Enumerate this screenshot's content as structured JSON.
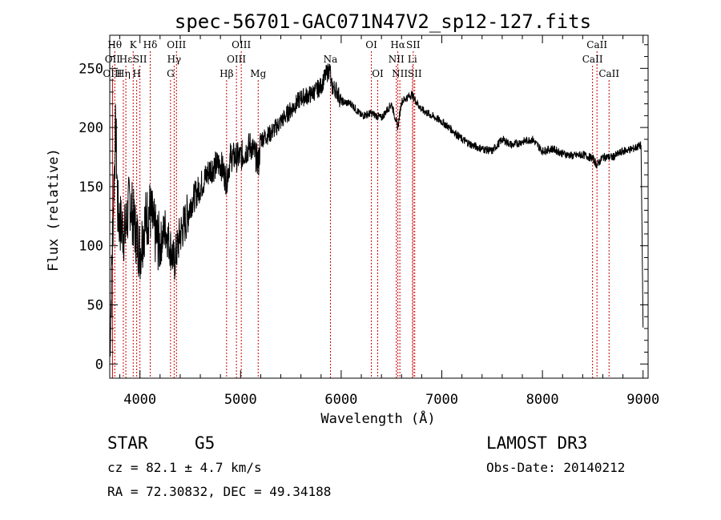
{
  "chart_data": {
    "type": "line",
    "title": "spec-56701-GAC071N47V2_sp12-127.fits",
    "xlabel": "Wavelength (Å)",
    "ylabel": "Flux (relative)",
    "xlim": [
      3700,
      9050
    ],
    "ylim": [
      -12,
      278
    ],
    "x_ticks": [
      4000,
      5000,
      6000,
      7000,
      8000,
      9000
    ],
    "y_ticks": [
      0,
      50,
      100,
      150,
      200,
      250
    ],
    "series": [
      {
        "name": "spectrum",
        "color": "#000000",
        "x": [
          3700,
          3720,
          3740,
          3760,
          3780,
          3800,
          3850,
          3900,
          3950,
          4000,
          4050,
          4100,
          4150,
          4200,
          4250,
          4300,
          4340,
          4400,
          4450,
          4500,
          4600,
          4700,
          4800,
          4860,
          4900,
          5000,
          5100,
          5180,
          5200,
          5300,
          5400,
          5500,
          5600,
          5700,
          5800,
          5850,
          5890,
          5900,
          5950,
          6000,
          6100,
          6200,
          6300,
          6400,
          6500,
          6563,
          6600,
          6700,
          6800,
          6900,
          7000,
          7100,
          7200,
          7300,
          7400,
          7500,
          7600,
          7700,
          7800,
          7900,
          8000,
          8100,
          8200,
          8300,
          8400,
          8500,
          8542,
          8600,
          8700,
          8800,
          8900,
          8980,
          9000
        ],
        "y": [
          10,
          80,
          150,
          200,
          130,
          120,
          110,
          140,
          115,
          95,
          120,
          130,
          110,
          100,
          115,
          100,
          85,
          110,
          120,
          135,
          150,
          165,
          170,
          155,
          175,
          175,
          185,
          170,
          190,
          195,
          205,
          215,
          225,
          228,
          235,
          245,
          250,
          235,
          232,
          222,
          220,
          210,
          212,
          208,
          220,
          200,
          222,
          228,
          215,
          210,
          205,
          198,
          190,
          185,
          182,
          180,
          190,
          185,
          188,
          190,
          180,
          182,
          178,
          176,
          177,
          174,
          168,
          175,
          175,
          180,
          182,
          185,
          30
        ]
      }
    ],
    "lines": [
      {
        "name": "OII",
        "x": 3727,
        "row": 1
      },
      {
        "name": "OIII",
        "x": 3727,
        "row": 2
      },
      {
        "name": "Hθ",
        "x": 3750,
        "row": 0
      },
      {
        "name": "Hη",
        "x": 3835,
        "row": 2
      },
      {
        "name": "Hε",
        "x": 3860,
        "row": 1
      },
      {
        "name": "K",
        "x": 3933,
        "row": 0
      },
      {
        "name": "H",
        "x": 3968,
        "row": 2
      },
      {
        "name": "SII",
        "x": 4000,
        "row": 1
      },
      {
        "name": "Hδ",
        "x": 4102,
        "row": 0
      },
      {
        "name": "G",
        "x": 4304,
        "row": 2
      },
      {
        "name": "Hγ",
        "x": 4340,
        "row": 1
      },
      {
        "name": "OIII",
        "x": 4363,
        "row": 0
      },
      {
        "name": "Hβ",
        "x": 4861,
        "row": 2
      },
      {
        "name": "OIII",
        "x": 4959,
        "row": 1
      },
      {
        "name": "OIII",
        "x": 5007,
        "row": 0
      },
      {
        "name": "Mg",
        "x": 5175,
        "row": 2
      },
      {
        "name": "Na",
        "x": 5893,
        "row": 1
      },
      {
        "name": "OI",
        "x": 6300,
        "row": 0
      },
      {
        "name": "OI",
        "x": 6363,
        "row": 2
      },
      {
        "name": "NII",
        "x": 6548,
        "row": 1
      },
      {
        "name": "Hα",
        "x": 6563,
        "row": 0
      },
      {
        "name": "NII",
        "x": 6583,
        "row": 2
      },
      {
        "name": "Li",
        "x": 6708,
        "row": 1
      },
      {
        "name": "SII",
        "x": 6716,
        "row": 0
      },
      {
        "name": "SII",
        "x": 6731,
        "row": 2
      },
      {
        "name": "CaII",
        "x": 8498,
        "row": 1
      },
      {
        "name": "CaII",
        "x": 8542,
        "row": 0
      },
      {
        "name": "CaII",
        "x": 8662,
        "row": 2
      }
    ],
    "line_marker_color": "#cc0000",
    "legend": "none",
    "grid": false
  },
  "info": {
    "object_class": "STAR",
    "subclass": "G5",
    "survey": "LAMOST DR3",
    "redshift": "cz = 82.1 ± 4.7 km/s",
    "obs_date": "Obs-Date: 20140212",
    "coords": "RA =  72.30832, DEC =  49.34188"
  }
}
